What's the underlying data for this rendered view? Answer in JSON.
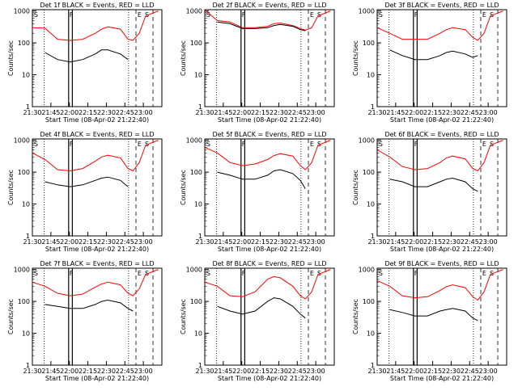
{
  "figure": {
    "ylabel": "Counts/sec",
    "xlabel": "Start Time (08-Apr-02 21:22:40)",
    "colors": {
      "events": "#000000",
      "lld": "#ff0000"
    },
    "xtick_labels": [
      "21:30",
      "21:45",
      "22:00",
      "22:15",
      "22:30",
      "22:45",
      "23:00"
    ],
    "ytick_labels": [
      "1",
      "10",
      "100",
      "1000"
    ],
    "markers": {
      "s_left": "S",
      "f": "F",
      "e": "E",
      "s_right": "S"
    }
  },
  "chart_data": [
    {
      "type": "line",
      "title": "Det 1f BLACK = Events, RED = LLD",
      "xlabel": "Start Time (08-Apr-02 21:22:40)",
      "ylabel": "Counts/sec",
      "x_minutes": [
        0,
        10,
        20,
        30,
        40,
        50,
        55,
        60,
        70,
        76,
        80,
        85,
        90,
        100
      ],
      "xlim": [
        21.5,
        23.25
      ],
      "ylim": [
        1,
        1100
      ],
      "yscale": "log",
      "series": [
        {
          "name": "LLD",
          "values": [
            300,
            290,
            130,
            120,
            130,
            200,
            270,
            320,
            270,
            130,
            120,
            200,
            700,
            1000
          ]
        },
        {
          "name": "Events",
          "values": [
            null,
            50,
            30,
            25,
            30,
            45,
            60,
            60,
            45,
            30,
            null,
            null,
            null,
            null
          ]
        }
      ]
    },
    {
      "type": "line",
      "title": "Det 2f BLACK = Events, RED = LLD",
      "xlabel": "Start Time (08-Apr-02 21:22:40)",
      "ylabel": "Counts/sec",
      "x_minutes": [
        0,
        10,
        20,
        30,
        40,
        50,
        55,
        60,
        70,
        76,
        80,
        85,
        90,
        100
      ],
      "xlim": [
        21.5,
        23.25
      ],
      "ylim": [
        1,
        1100
      ],
      "yscale": "log",
      "series": [
        {
          "name": "LLD",
          "values": [
            1100,
            500,
            450,
            300,
            300,
            330,
            400,
            420,
            350,
            280,
            250,
            300,
            700,
            1000
          ]
        },
        {
          "name": "Events",
          "values": [
            null,
            450,
            400,
            280,
            280,
            300,
            350,
            380,
            330,
            260,
            240,
            null,
            null,
            null
          ]
        }
      ]
    },
    {
      "type": "line",
      "title": "Det 3f BLACK = Events, RED = LLD",
      "xlabel": "Start Time (08-Apr-02 21:22:40)",
      "ylabel": "Counts/sec",
      "x_minutes": [
        0,
        10,
        20,
        30,
        40,
        50,
        55,
        60,
        70,
        76,
        80,
        85,
        90,
        100
      ],
      "xlim": [
        21.5,
        23.25
      ],
      "ylim": [
        1,
        1100
      ],
      "yscale": "log",
      "series": [
        {
          "name": "LLD",
          "values": [
            300,
            200,
            130,
            130,
            130,
            200,
            260,
            300,
            260,
            150,
            120,
            200,
            700,
            1000
          ]
        },
        {
          "name": "Events",
          "values": [
            null,
            60,
            40,
            30,
            30,
            40,
            50,
            55,
            45,
            35,
            40,
            null,
            null,
            null
          ]
        }
      ]
    },
    {
      "type": "line",
      "title": "Det 4f BLACK = Events, RED = LLD",
      "xlabel": "Start Time (08-Apr-02 21:22:40)",
      "ylabel": "Counts/sec",
      "x_minutes": [
        0,
        10,
        20,
        30,
        40,
        50,
        55,
        60,
        70,
        76,
        80,
        85,
        90,
        100
      ],
      "xlim": [
        21.5,
        23.25
      ],
      "ylim": [
        1,
        1100
      ],
      "yscale": "log",
      "series": [
        {
          "name": "LLD",
          "values": [
            400,
            250,
            120,
            110,
            130,
            220,
            300,
            340,
            280,
            130,
            110,
            200,
            700,
            1000
          ]
        },
        {
          "name": "Events",
          "values": [
            null,
            50,
            40,
            35,
            40,
            55,
            65,
            70,
            55,
            35,
            null,
            null,
            null,
            null
          ]
        }
      ]
    },
    {
      "type": "line",
      "title": "Det 5f BLACK = Events, RED = LLD",
      "xlabel": "Start Time (08-Apr-02 21:22:40)",
      "ylabel": "Counts/sec",
      "x_minutes": [
        0,
        10,
        20,
        30,
        40,
        50,
        55,
        60,
        70,
        76,
        80,
        85,
        90,
        100
      ],
      "xlim": [
        21.5,
        23.25
      ],
      "ylim": [
        1,
        1100
      ],
      "yscale": "log",
      "series": [
        {
          "name": "LLD",
          "values": [
            600,
            400,
            200,
            160,
            180,
            250,
            330,
            380,
            320,
            160,
            120,
            200,
            700,
            1000
          ]
        },
        {
          "name": "Events",
          "values": [
            null,
            100,
            80,
            60,
            60,
            80,
            110,
            120,
            90,
            55,
            30,
            null,
            null,
            null
          ]
        }
      ]
    },
    {
      "type": "line",
      "title": "Det 6f BLACK = Events, RED = LLD",
      "xlabel": "Start Time (08-Apr-02 21:22:40)",
      "ylabel": "Counts/sec",
      "x_minutes": [
        0,
        10,
        20,
        30,
        40,
        50,
        55,
        60,
        70,
        76,
        80,
        85,
        90,
        100
      ],
      "xlim": [
        21.5,
        23.25
      ],
      "ylim": [
        1,
        1100
      ],
      "yscale": "log",
      "series": [
        {
          "name": "LLD",
          "values": [
            500,
            300,
            150,
            120,
            130,
            200,
            280,
            320,
            260,
            130,
            110,
            200,
            700,
            1000
          ]
        },
        {
          "name": "Events",
          "values": [
            null,
            60,
            50,
            35,
            35,
            50,
            60,
            65,
            50,
            30,
            25,
            null,
            null,
            null
          ]
        }
      ]
    },
    {
      "type": "line",
      "title": "Det 7f BLACK = Events, RED = LLD",
      "xlabel": "Start Time (08-Apr-02 21:22:40)",
      "ylabel": "Counts/sec",
      "x_minutes": [
        0,
        10,
        20,
        30,
        40,
        50,
        55,
        60,
        70,
        76,
        80,
        85,
        90,
        100
      ],
      "xlim": [
        21.5,
        23.25
      ],
      "ylim": [
        1,
        1100
      ],
      "yscale": "log",
      "series": [
        {
          "name": "LLD",
          "values": [
            400,
            300,
            180,
            150,
            170,
            280,
            350,
            400,
            330,
            180,
            150,
            250,
            700,
            1000
          ]
        },
        {
          "name": "Events",
          "values": [
            null,
            80,
            70,
            60,
            60,
            80,
            100,
            110,
            90,
            60,
            50,
            null,
            null,
            null
          ]
        }
      ]
    },
    {
      "type": "line",
      "title": "Det 8f BLACK = Events, RED = LLD",
      "xlabel": "Start Time (08-Apr-02 21:22:40)",
      "ylabel": "Counts/sec",
      "x_minutes": [
        0,
        10,
        20,
        30,
        40,
        50,
        55,
        60,
        70,
        76,
        80,
        85,
        90,
        100
      ],
      "xlim": [
        21.5,
        23.25
      ],
      "ylim": [
        1,
        1100
      ],
      "yscale": "log",
      "series": [
        {
          "name": "LLD",
          "values": [
            400,
            300,
            150,
            140,
            200,
            500,
            600,
            550,
            300,
            150,
            120,
            200,
            700,
            1000
          ]
        },
        {
          "name": "Events",
          "values": [
            null,
            70,
            50,
            40,
            50,
            100,
            130,
            120,
            70,
            40,
            30,
            null,
            null,
            null
          ]
        }
      ]
    },
    {
      "type": "line",
      "title": "Det 9f BLACK = Events, RED = LLD",
      "xlabel": "Start Time (08-Apr-02 21:22:40)",
      "ylabel": "Counts/sec",
      "x_minutes": [
        0,
        10,
        20,
        30,
        40,
        50,
        55,
        60,
        70,
        76,
        80,
        85,
        90,
        100
      ],
      "xlim": [
        21.5,
        23.25
      ],
      "ylim": [
        1,
        1100
      ],
      "yscale": "log",
      "series": [
        {
          "name": "LLD",
          "values": [
            450,
            300,
            150,
            130,
            140,
            220,
            290,
            330,
            270,
            140,
            110,
            200,
            700,
            1000
          ]
        },
        {
          "name": "Events",
          "values": [
            null,
            55,
            45,
            35,
            35,
            50,
            55,
            60,
            50,
            30,
            25,
            null,
            null,
            null
          ]
        }
      ]
    }
  ]
}
